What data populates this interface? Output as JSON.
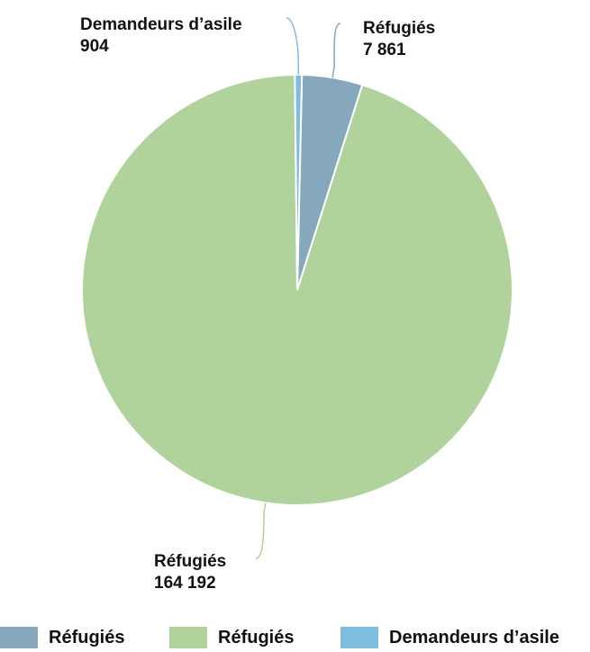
{
  "chart_data": {
    "type": "pie",
    "slices": [
      {
        "label": "Réfugiés",
        "value": 7861,
        "value_text": "7 861",
        "color": "#86a8bd"
      },
      {
        "label": "Réfugiés",
        "value": 164192,
        "value_text": "164 192",
        "color": "#b0d39c"
      },
      {
        "label": "Demandeurs d’asile",
        "value": 904,
        "value_text": "904",
        "color": "#7fbde0"
      }
    ],
    "legend": {
      "position": "bottom"
    }
  }
}
